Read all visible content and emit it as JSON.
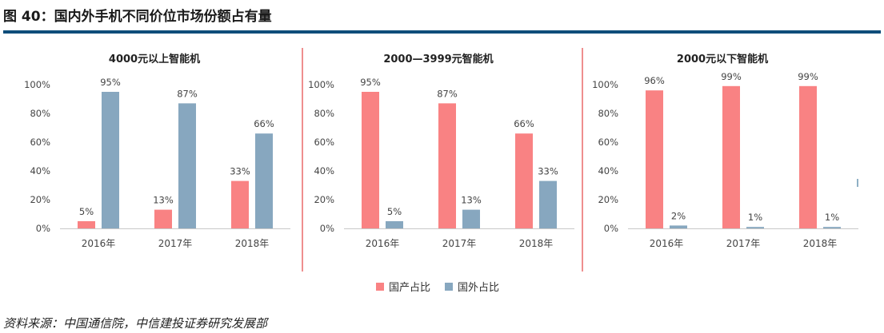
{
  "figure": {
    "title": "图 40：国内外手机不同价位市场份额占有量",
    "source": "资料来源：中国通信院，中信建投证券研究发展部"
  },
  "legend": {
    "domestic_label": "国产占比",
    "foreign_label": "国外占比",
    "domestic_color": "#f98283",
    "foreign_color": "#87a7bf"
  },
  "chart_data": [
    {
      "type": "bar",
      "title": "4000元以上智能机",
      "categories": [
        "2016年",
        "2017年",
        "2018年"
      ],
      "ylim": [
        0,
        100
      ],
      "yticks": [
        "0%",
        "20%",
        "40%",
        "60%",
        "80%",
        "100%"
      ],
      "series": [
        {
          "name": "国产占比",
          "values": [
            5,
            13,
            33
          ],
          "labels": [
            "5%",
            "13%",
            "33%"
          ]
        },
        {
          "name": "国外占比",
          "values": [
            95,
            87,
            66
          ],
          "labels": [
            "95%",
            "87%",
            "66%"
          ]
        }
      ]
    },
    {
      "type": "bar",
      "title": "2000—3999元智能机",
      "categories": [
        "2016年",
        "2017年",
        "2018年"
      ],
      "ylim": [
        0,
        100
      ],
      "yticks": [
        "0%",
        "20%",
        "40%",
        "60%",
        "80%",
        "100%"
      ],
      "series": [
        {
          "name": "国产占比",
          "values": [
            95,
            87,
            66
          ],
          "labels": [
            "95%",
            "87%",
            "66%"
          ]
        },
        {
          "name": "国外占比",
          "values": [
            5,
            13,
            33
          ],
          "labels": [
            "5%",
            "13%",
            "33%"
          ]
        }
      ]
    },
    {
      "type": "bar",
      "title": "2000元以下智能机",
      "categories": [
        "2016年",
        "2017年",
        "2018年"
      ],
      "ylim": [
        0,
        100
      ],
      "yticks": [
        "0%",
        "20%",
        "40%",
        "60%",
        "80%",
        "100%"
      ],
      "series": [
        {
          "name": "国产占比",
          "values": [
            96,
            99,
            99
          ],
          "labels": [
            "96%",
            "99%",
            "99%"
          ]
        },
        {
          "name": "国外占比",
          "values": [
            2,
            1,
            1
          ],
          "labels": [
            "2%",
            "1%",
            "1%"
          ]
        }
      ]
    }
  ]
}
